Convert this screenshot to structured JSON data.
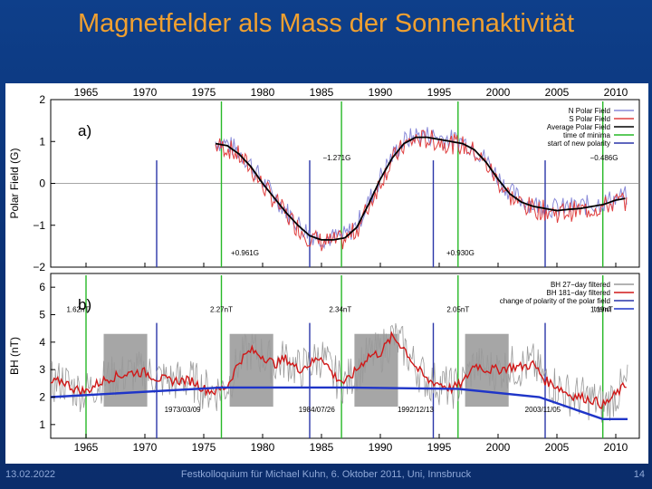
{
  "title": "Magnetfelder als Mass der Sonnenaktivität",
  "footer": {
    "date": "13.02.2022",
    "center": "Festkolloquium für Michael Kuhn, 6. Oktober 2011, Uni, Innsbruck",
    "page": "14"
  },
  "colors": {
    "title": "#f0a030",
    "north": "#8a8ad8",
    "south": "#e04040",
    "average": "#000000",
    "minima": "#27b827",
    "polarity": "#2a35a8",
    "trend": "#1f35c8",
    "shade": "#a6a6a6",
    "bh_gray": "#9a9a9a",
    "bh_red": "#d01818"
  },
  "chart_data": [
    {
      "id": "a",
      "type": "line",
      "panel_label": "a)",
      "ylabel": "Polar Field (G)",
      "ylim": [
        -2,
        2
      ],
      "xlim": [
        1962,
        2012
      ],
      "yticks": [
        "2",
        "1",
        "0",
        "−1",
        "−2"
      ],
      "xticks": [
        "1965",
        "1970",
        "1975",
        "1980",
        "1985",
        "1990",
        "1995",
        "2000",
        "2005",
        "2010"
      ],
      "legend": [
        "N Polar Field",
        "S Polar Field",
        "Average Polar Field",
        "time of minima",
        "start of new polarity"
      ],
      "minima_years": [
        1976.5,
        1986.7,
        1996.6,
        2008.9
      ],
      "polarity_years": [
        1971.0,
        1984.0,
        1994.5,
        2004.0
      ],
      "average_series": {
        "x": [
          1976.0,
          1977.0,
          1978.0,
          1979.0,
          1980.0,
          1981.0,
          1982.0,
          1983.0,
          1984.0,
          1985.0,
          1986.0,
          1987.0,
          1988.0,
          1989.0,
          1990.0,
          1991.0,
          1992.0,
          1993.0,
          1994.0,
          1995.0,
          1996.0,
          1997.0,
          1998.0,
          1999.0,
          2000.0,
          2001.0,
          2002.0,
          2003.0,
          2004.0,
          2005.0,
          2006.0,
          2007.0,
          2008.0,
          2009.0,
          2010.0,
          2011.0
        ],
        "values": [
          0.95,
          0.9,
          0.7,
          0.4,
          0.0,
          -0.35,
          -0.7,
          -1.0,
          -1.25,
          -1.35,
          -1.35,
          -1.3,
          -1.05,
          -0.5,
          0.1,
          0.6,
          0.95,
          1.1,
          1.1,
          1.05,
          1.0,
          0.95,
          0.8,
          0.5,
          0.1,
          -0.25,
          -0.45,
          -0.55,
          -0.6,
          -0.65,
          -0.62,
          -0.6,
          -0.55,
          -0.5,
          -0.4,
          -0.35
        ]
      },
      "annotations": [
        {
          "text": "−1.271G",
          "x": 1986.3,
          "y": 0.55
        },
        {
          "text": "−0.486G",
          "x": 2009.0,
          "y": 0.55
        },
        {
          "text": "+0.961G",
          "x": 1978.5,
          "y": -1.72
        },
        {
          "text": "+0.930G",
          "x": 1996.8,
          "y": -1.72
        }
      ]
    },
    {
      "id": "b",
      "type": "line",
      "panel_label": "b)",
      "ylabel": "BH (nT)",
      "ylim": [
        0.5,
        6.5
      ],
      "xlim": [
        1962,
        2012
      ],
      "yticks": [
        "6",
        "5",
        "4",
        "3",
        "2",
        "1"
      ],
      "xticks": [
        "1965",
        "1970",
        "1975",
        "1980",
        "1985",
        "1990",
        "1995",
        "2000",
        "2005",
        "2010"
      ],
      "legend": [
        "BH 27−day filtered",
        "BH 181−day filtered",
        "change of polarity of the polar field",
        "trend"
      ],
      "minima_years": [
        1965.0,
        1976.5,
        1986.7,
        1996.6,
        2008.9
      ],
      "polarity_years": [
        1971.0,
        1984.0,
        1994.5,
        2004.0
      ],
      "shaded_intervals": [
        [
          1966.5,
          1970.2
        ],
        [
          1977.2,
          1980.9
        ],
        [
          1987.8,
          1991.5
        ],
        [
          1997.2,
          2000.9
        ]
      ],
      "trend": {
        "x": [
          1962.0,
          1976.5,
          1986.7,
          1996.6,
          2003.5,
          2008.9,
          2011.0
        ],
        "values": [
          2.0,
          2.35,
          2.35,
          2.3,
          2.0,
          1.2,
          1.2
        ]
      },
      "red_series": {
        "x": [
          1962.0,
          1963.0,
          1964.0,
          1965.0,
          1966.0,
          1967.0,
          1968.0,
          1969.0,
          1970.0,
          1971.0,
          1972.0,
          1973.0,
          1974.0,
          1975.0,
          1976.0,
          1977.0,
          1978.0,
          1979.0,
          1980.0,
          1981.0,
          1982.0,
          1983.0,
          1984.0,
          1985.0,
          1986.0,
          1987.0,
          1988.0,
          1989.0,
          1990.0,
          1991.0,
          1992.0,
          1993.0,
          1994.0,
          1995.0,
          1996.0,
          1997.0,
          1998.0,
          1999.0,
          2000.0,
          2001.0,
          2002.0,
          2003.0,
          2004.0,
          2005.0,
          2006.0,
          2007.0,
          2008.0,
          2009.0,
          2010.0,
          2011.0
        ],
        "values": [
          2.5,
          2.6,
          2.3,
          2.2,
          2.5,
          2.7,
          2.8,
          2.9,
          2.9,
          2.7,
          2.6,
          2.6,
          2.6,
          2.3,
          2.2,
          2.4,
          3.3,
          3.7,
          3.5,
          3.2,
          3.4,
          3.0,
          3.2,
          3.5,
          2.8,
          2.5,
          3.0,
          3.5,
          3.6,
          4.2,
          3.8,
          3.1,
          2.6,
          2.5,
          2.3,
          2.5,
          3.2,
          3.0,
          3.0,
          3.1,
          3.1,
          3.2,
          2.6,
          2.4,
          2.1,
          2.0,
          1.9,
          1.7,
          2.1,
          2.5
        ]
      },
      "annotations": [
        {
          "text": "1.62nT",
          "x": 1964.3,
          "y": 5.1
        },
        {
          "text": "2.27nT",
          "x": 1976.5,
          "y": 5.1
        },
        {
          "text": "2.34nT",
          "x": 1986.6,
          "y": 5.1
        },
        {
          "text": "2.05nT",
          "x": 1996.6,
          "y": 5.1
        },
        {
          "text": "1.19nT",
          "x": 2008.8,
          "y": 5.1
        }
      ],
      "date_labels": [
        {
          "text": "1973/03/09",
          "x": 1973.2
        },
        {
          "text": "1984/07/26",
          "x": 1984.6
        },
        {
          "text": "1992/12/13",
          "x": 1993.0
        },
        {
          "text": "2003/11/05",
          "x": 2003.8
        }
      ]
    }
  ]
}
